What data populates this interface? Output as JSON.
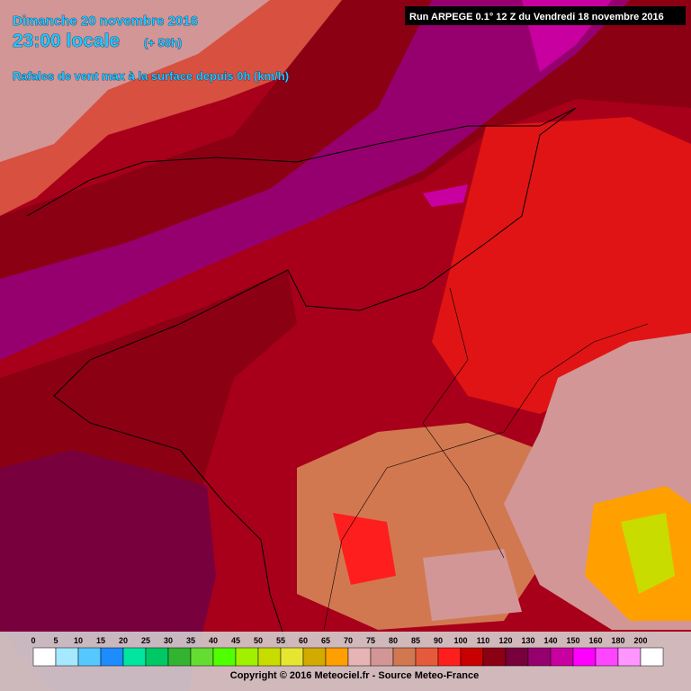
{
  "header": {
    "date": "Dimanche 20 novembre 2016",
    "time": "23:00 locale",
    "lead": "(+ 58h)",
    "variable": "Rafales de vent max à la surface depuis 0h (km/h)",
    "run": "Run ARPEGE 0.1° 12 Z du Vendredi 18 novembre 2016"
  },
  "legend": {
    "levels": [
      {
        "value": 0,
        "color": "#ffffff"
      },
      {
        "value": 5,
        "color": "#a6e8ff"
      },
      {
        "value": 10,
        "color": "#55c8ff"
      },
      {
        "value": 15,
        "color": "#1e8cff"
      },
      {
        "value": 20,
        "color": "#00e6a0"
      },
      {
        "value": 25,
        "color": "#00c864"
      },
      {
        "value": 30,
        "color": "#32b432"
      },
      {
        "value": 35,
        "color": "#64dc32"
      },
      {
        "value": 40,
        "color": "#50ff00"
      },
      {
        "value": 45,
        "color": "#a0f000"
      },
      {
        "value": 50,
        "color": "#c8dc00"
      },
      {
        "value": 55,
        "color": "#e6e632"
      },
      {
        "value": 60,
        "color": "#d2aa00"
      },
      {
        "value": 65,
        "color": "#ffa000"
      },
      {
        "value": 70,
        "color": "#e6b4b4"
      },
      {
        "value": 75,
        "color": "#d29696"
      },
      {
        "value": 80,
        "color": "#d27850"
      },
      {
        "value": 85,
        "color": "#e65a3c"
      },
      {
        "value": 90,
        "color": "#ff1e1e"
      },
      {
        "value": 100,
        "color": "#c80000"
      },
      {
        "value": 110,
        "color": "#8c0014"
      },
      {
        "value": 120,
        "color": "#78003c"
      },
      {
        "value": 130,
        "color": "#96006e"
      },
      {
        "value": 140,
        "color": "#c800a0"
      },
      {
        "value": 150,
        "color": "#ff00ff"
      },
      {
        "value": 160,
        "color": "#ff46ff"
      },
      {
        "value": 180,
        "color": "#ff96ff"
      },
      {
        "value": 200,
        "color": "#ffffff"
      }
    ]
  },
  "footer": {
    "credit": "Copyright © 2016 Meteociel.fr - Source Meteo-France"
  }
}
